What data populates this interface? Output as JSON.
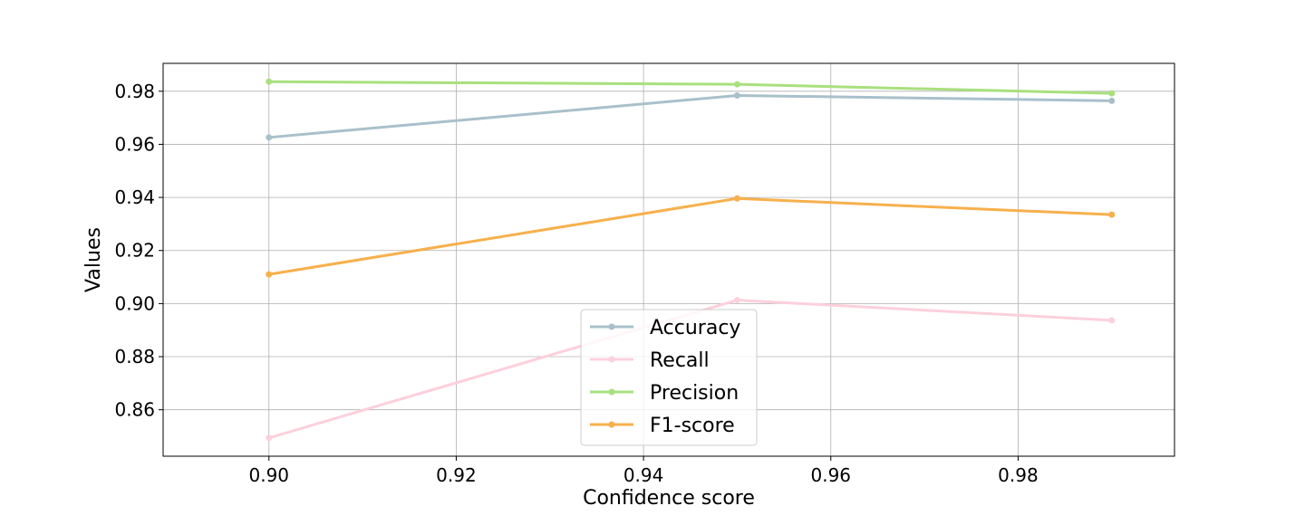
{
  "chart_data": {
    "type": "line",
    "title": "",
    "xlabel": "Confidence score",
    "ylabel": "Values",
    "x": [
      0.9,
      0.95,
      0.99
    ],
    "xlim": [
      0.8887,
      0.9967
    ],
    "ylim": [
      0.8425,
      0.9905
    ],
    "xticks": [
      0.9,
      0.92,
      0.94,
      0.96,
      0.98
    ],
    "xtick_labels": [
      "0.90",
      "0.92",
      "0.94",
      "0.96",
      "0.98"
    ],
    "yticks": [
      0.86,
      0.88,
      0.9,
      0.92,
      0.94,
      0.96,
      0.98
    ],
    "ytick_labels": [
      "0.86",
      "0.88",
      "0.90",
      "0.92",
      "0.94",
      "0.96",
      "0.98"
    ],
    "grid": true,
    "legend_position": "lower-center",
    "series": [
      {
        "name": "Accuracy",
        "color": "#a9c0cb",
        "values": [
          0.9626,
          0.9784,
          0.9764
        ]
      },
      {
        "name": "Recall",
        "color": "#fcd0dc",
        "values": [
          0.8494,
          0.9013,
          0.8937
        ]
      },
      {
        "name": "Precision",
        "color": "#a9e07e",
        "values": [
          0.9836,
          0.9826,
          0.9792
        ]
      },
      {
        "name": "F1-score",
        "color": "#f7b04c",
        "values": [
          0.911,
          0.9396,
          0.9335
        ]
      }
    ]
  }
}
